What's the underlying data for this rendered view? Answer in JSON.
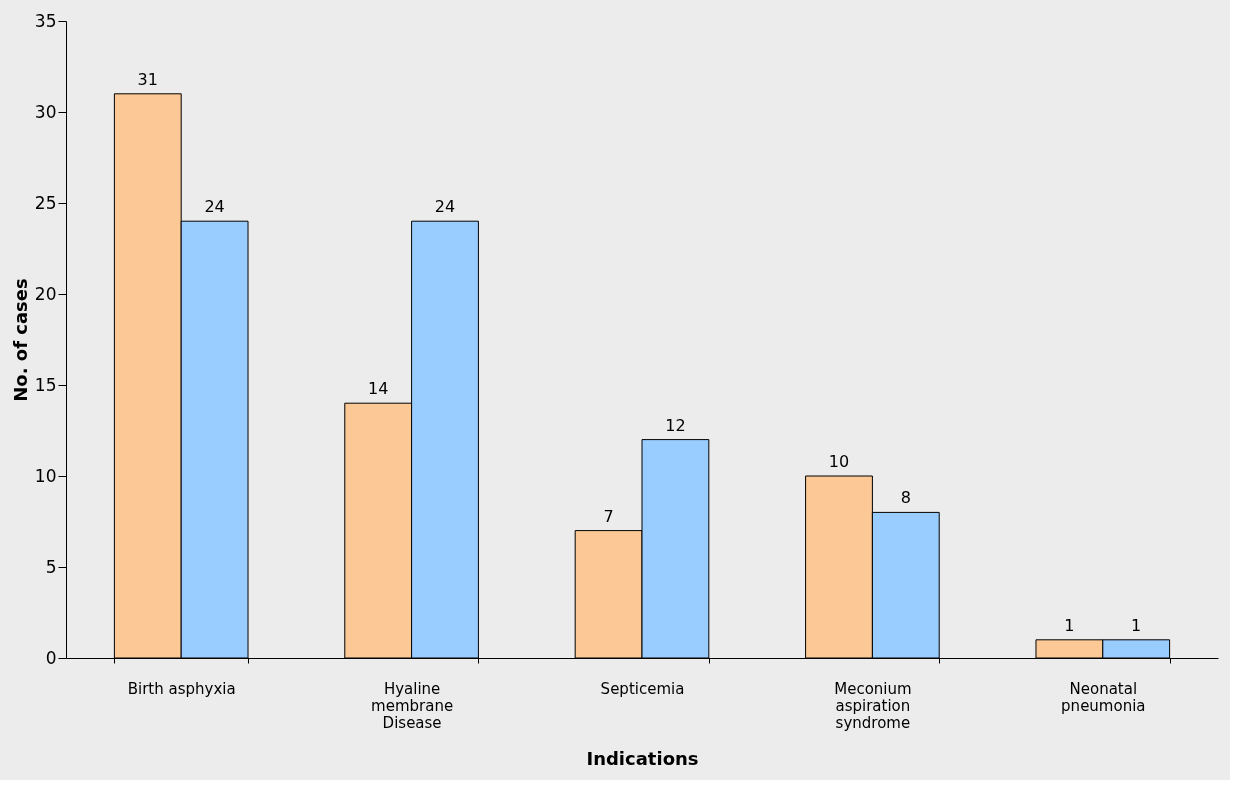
{
  "chart_data": {
    "type": "bar",
    "xlabel": "Indications",
    "ylabel": "No. of cases",
    "categories": [
      "Birth asphyxia",
      "Hyaline membrane Disease",
      "Septicemia",
      "Meconium aspiration syndrome",
      "Neonatal pneumonia"
    ],
    "series": [
      {
        "color": "#fcc896",
        "values": [
          31,
          14,
          7,
          10,
          1
        ]
      },
      {
        "color": "#99ccff",
        "values": [
          24,
          24,
          12,
          8,
          1
        ]
      }
    ],
    "ylim": [
      0,
      35
    ],
    "yticks": [
      0,
      5,
      10,
      15,
      20,
      25,
      30,
      35
    ],
    "grid": false,
    "data_labels": true
  }
}
